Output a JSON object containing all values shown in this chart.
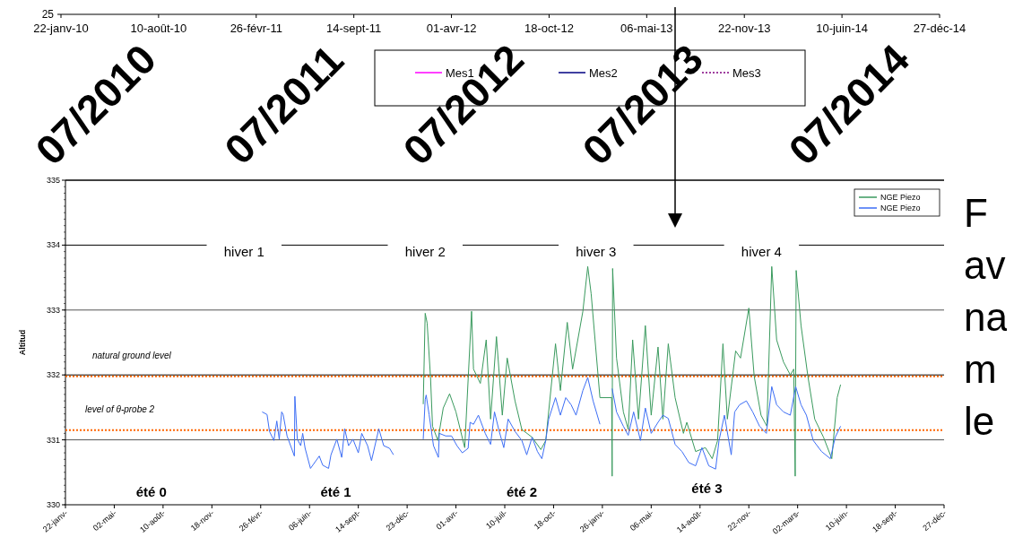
{
  "chart_data": [
    {
      "type": "other",
      "legend": "bottom",
      "series": [
        {
          "name": "Mes1",
          "color": "#ff00ff"
        },
        {
          "name": "Mes2",
          "color": "#000080"
        },
        {
          "name": "Mes3",
          "color": "#800080",
          "line_style": "dotted"
        }
      ],
      "annotations": [
        "25",
        "22-janv-10",
        "10-août-10",
        "26-févr-11",
        "14-sept-11",
        "01-avr-12",
        "18-oct-12",
        "06-mai-13",
        "22-nov-13",
        "10-juin-14",
        "27-déc-14",
        "07/2010",
        "07/2011",
        "07/2012",
        "07/2013",
        "07/2014"
      ]
    },
    {
      "type": "line",
      "ylabel": "Altitud",
      "xlim": [
        "2010-01-22",
        "2014-12-27"
      ],
      "xticks": [
        {
          "value": "2010-01-22",
          "label": "22-janv-"
        },
        {
          "value": "2010-05-02",
          "label": "02-mai-"
        },
        {
          "value": "2010-08-10",
          "label": "10-août-"
        },
        {
          "value": "2010-11-18",
          "label": "18-nov-"
        },
        {
          "value": "2011-02-26",
          "label": "26-févr-"
        },
        {
          "value": "2011-06-06",
          "label": "06-juin-"
        },
        {
          "value": "2011-09-14",
          "label": "14-sept-"
        },
        {
          "value": "2011-12-23",
          "label": "23-déc-"
        },
        {
          "value": "2012-04-01",
          "label": "01-avr-"
        },
        {
          "value": "2012-07-10",
          "label": "10-juil-"
        },
        {
          "value": "2012-10-18",
          "label": "18-oct-"
        },
        {
          "value": "2013-01-26",
          "label": "26-janv-"
        },
        {
          "value": "2013-05-06",
          "label": "06-mai-"
        },
        {
          "value": "2013-08-14",
          "label": "14-août-"
        },
        {
          "value": "2013-11-22",
          "label": "22-nov-"
        },
        {
          "value": "2014-03-02",
          "label": "02-mars-"
        },
        {
          "value": "2014-06-10",
          "label": "10-juin-"
        },
        {
          "value": "2014-09-18",
          "label": "18-sept-"
        },
        {
          "value": "2014-12-27",
          "label": "27-déc-"
        }
      ],
      "ylim": [
        330,
        335
      ],
      "yticks": [
        330,
        331,
        332,
        333,
        334,
        335
      ],
      "grid": "y",
      "legend": "top right",
      "ref_lines": [
        {
          "axis": "y",
          "value": 331.98,
          "label": "natural ground level",
          "color": "#ff6600",
          "line_style": "dotted"
        },
        {
          "axis": "y",
          "value": 331.15,
          "label": "level of θ-probe 2",
          "color": "#ff6600",
          "line_style": "dotted"
        }
      ],
      "series": [
        {
          "name": "NGE Piezo",
          "color": "#3a9a5e",
          "x": [
            "2012-01-25",
            "2012-01-29",
            "2012-02-02",
            "2012-02-09",
            "2012-02-13",
            "2012-02-24",
            "2012-03-06",
            "2012-03-19",
            "2012-04-01",
            "2012-04-19",
            "2012-05-03",
            "2012-05-07",
            "2012-05-21",
            "2012-06-02",
            "2012-06-11",
            "2012-06-23",
            "2012-07-05",
            "2012-07-15",
            "2012-07-31",
            "2012-08-14",
            "2012-09-04",
            "2012-09-22",
            "2012-10-02",
            "2012-10-22",
            "2012-11-01",
            "2012-11-15",
            "2012-11-26",
            "2012-12-17",
            "2012-12-27",
            "2013-01-03",
            "2013-01-21",
            "2013-02-14",
            "2013-02-15",
            "2013-02-16",
            "2013-02-24",
            "2013-03-10",
            "2013-03-20",
            "2013-03-29",
            "2013-04-10",
            "2013-04-24",
            "2013-05-06",
            "2013-05-20",
            "2013-05-30",
            "2013-06-10",
            "2013-06-24",
            "2013-07-11",
            "2013-07-18",
            "2013-08-05",
            "2013-08-25",
            "2013-09-08",
            "2013-09-19",
            "2013-09-30",
            "2013-10-09",
            "2013-10-26",
            "2013-11-05",
            "2013-11-22",
            "2013-12-03",
            "2013-12-17",
            "2013-12-29",
            "2014-01-08",
            "2014-01-18",
            "2014-02-01",
            "2014-02-15",
            "2014-02-22",
            "2014-02-25",
            "2014-02-27",
            "2014-03-09",
            "2014-03-23",
            "2014-04-06",
            "2014-04-24",
            "2014-05-11",
            "2014-05-22",
            "2014-05-29"
          ],
          "values": [
            331.55,
            332.95,
            332.8,
            331.95,
            331.21,
            330.99,
            331.49,
            331.71,
            331.43,
            330.88,
            332.98,
            332.09,
            331.87,
            332.54,
            331.32,
            332.59,
            331.38,
            332.26,
            331.6,
            331.16,
            331.04,
            330.85,
            330.99,
            332.48,
            331.76,
            332.81,
            332.09,
            332.98,
            333.67,
            333.25,
            331.65,
            331.65,
            330.44,
            333.64,
            332.26,
            331.43,
            331.16,
            332.54,
            331.32,
            332.76,
            331.38,
            332.43,
            331.32,
            332.48,
            331.65,
            331.1,
            331.27,
            330.82,
            330.88,
            330.71,
            330.99,
            332.48,
            331.32,
            332.37,
            332.26,
            333.03,
            331.98,
            331.38,
            331.21,
            333.67,
            332.54,
            332.2,
            332.0,
            332.09,
            330.44,
            333.61,
            332.76,
            331.98,
            331.32,
            331.04,
            330.71,
            331.65,
            331.85
          ]
        },
        {
          "name": "NGE Piezo",
          "color": "#3d6ef5",
          "x": [
            "2011-03-01",
            "2011-03-11",
            "2011-03-16",
            "2011-03-25",
            "2011-03-31",
            "2011-04-05",
            "2011-04-10",
            "2011-04-13",
            "2011-04-21",
            "2011-05-06",
            "2011-05-07",
            "2011-05-12",
            "2011-05-19",
            "2011-05-23",
            "2011-05-28",
            "2011-06-08",
            "2011-06-26",
            "2011-07-03",
            "2011-07-15",
            "2011-07-20",
            "2011-08-01",
            "2011-08-11",
            "2011-08-17",
            "2011-08-25",
            "2011-09-03",
            "2011-09-14",
            "2011-09-21",
            "2011-10-03",
            "2011-10-11",
            "2011-10-26",
            "2011-11-05",
            "2011-11-17",
            "2011-11-25",
            "2011-12-20",
            "2012-01-25",
            "2012-01-29",
            "2012-01-31",
            "2012-02-06",
            "2012-02-15",
            "2012-02-25",
            "2012-02-27",
            "2012-03-11",
            "2012-03-23",
            "2012-04-03",
            "2012-04-14",
            "2012-04-26",
            "2012-04-30",
            "2012-05-07",
            "2012-05-17",
            "2012-05-31",
            "2012-06-11",
            "2012-06-19",
            "2012-06-28",
            "2012-07-08",
            "2012-07-17",
            "2012-07-31",
            "2012-08-14",
            "2012-08-24",
            "2012-09-04",
            "2012-09-15",
            "2012-09-24",
            "2012-10-02",
            "2012-10-08",
            "2012-10-22",
            "2012-11-01",
            "2012-11-12",
            "2012-11-23",
            "2012-12-03",
            "2012-12-17",
            "2012-12-27",
            "2013-01-07",
            "2013-01-21",
            "2013-02-05",
            "2013-02-15",
            "2013-02-24",
            "2013-03-10",
            "2013-03-20",
            "2013-03-31",
            "2013-04-14",
            "2013-04-24",
            "2013-05-06",
            "2013-05-20",
            "2013-05-30",
            "2013-06-10",
            "2013-06-24",
            "2013-07-08",
            "2013-07-22",
            "2013-08-05",
            "2013-08-18",
            "2013-09-01",
            "2013-09-15",
            "2013-09-22",
            "2013-10-03",
            "2013-10-17",
            "2013-10-24",
            "2013-11-03",
            "2013-11-17",
            "2013-11-30",
            "2013-12-14",
            "2013-12-28",
            "2014-01-08",
            "2014-01-18",
            "2014-02-01",
            "2014-02-15",
            "2014-02-26",
            "2014-03-09",
            "2014-03-20",
            "2014-04-03",
            "2014-04-20",
            "2014-05-08",
            "2014-05-18",
            "2014-05-29"
          ],
          "values": [
            331.43,
            331.39,
            331.13,
            330.99,
            331.29,
            331.01,
            331.43,
            331.39,
            331.06,
            330.75,
            331.67,
            331.01,
            330.91,
            331.1,
            330.87,
            330.56,
            330.75,
            330.61,
            330.56,
            330.77,
            331.01,
            330.73,
            331.17,
            330.91,
            331.01,
            330.8,
            331.1,
            330.91,
            330.68,
            331.17,
            330.91,
            330.87,
            330.77,
            null,
            331.01,
            331.62,
            331.69,
            331.39,
            330.91,
            330.73,
            331.1,
            331.06,
            331.06,
            330.91,
            330.8,
            330.87,
            331.27,
            331.24,
            331.38,
            331.1,
            330.93,
            331.43,
            331.15,
            330.88,
            331.32,
            331.13,
            330.99,
            330.77,
            331.04,
            330.82,
            330.71,
            330.99,
            331.32,
            331.65,
            331.38,
            331.65,
            331.54,
            331.38,
            331.76,
            331.96,
            331.6,
            331.24,
            null,
            331.79,
            331.43,
            331.21,
            331.07,
            331.43,
            330.99,
            331.49,
            331.1,
            331.27,
            331.38,
            331.33,
            330.93,
            330.82,
            330.65,
            330.6,
            330.88,
            330.6,
            330.55,
            330.99,
            331.38,
            330.77,
            331.43,
            331.54,
            331.6,
            331.43,
            331.21,
            331.1,
            331.82,
            331.54,
            331.43,
            331.38,
            331.82,
            331.54,
            331.38,
            330.99,
            330.82,
            330.71,
            331.04,
            331.21
          ]
        }
      ],
      "annotations": [
        "hiver 1",
        "hiver 2",
        "hiver 3",
        "hiver 4",
        "été 0",
        "été 1",
        "été 2",
        "été 3",
        "F",
        "av",
        "na",
        "m",
        "le"
      ]
    }
  ]
}
